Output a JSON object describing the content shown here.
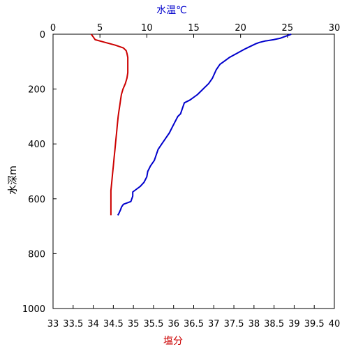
{
  "chart_data": {
    "type": "line",
    "title": "",
    "colors": {
      "temperature": "#0000cc",
      "salinity": "#cc0000",
      "axis": "#000000"
    },
    "axes": {
      "y": {
        "label": "水深m",
        "range": [
          0,
          1000
        ],
        "inverted": true,
        "ticks": [
          "0",
          "200",
          "400",
          "600",
          "800",
          "1000"
        ]
      },
      "x_top": {
        "label": "水温℃",
        "range": [
          0,
          30
        ],
        "ticks": [
          "0",
          "5",
          "10",
          "15",
          "20",
          "25",
          "30"
        ]
      },
      "x_bottom": {
        "label": "塩分",
        "range": [
          33,
          40
        ],
        "ticks": [
          "33",
          "33.5",
          "34",
          "34.5",
          "35",
          "35.5",
          "36",
          "36.5",
          "37",
          "37.5",
          "38",
          "38.5",
          "39",
          "39.5",
          "40"
        ]
      }
    },
    "grid": false,
    "series": [
      {
        "name": "",
        "axis": "x_top",
        "points": [
          [
            25.4,
            0
          ],
          [
            25.0,
            5
          ],
          [
            24.6,
            10
          ],
          [
            24.2,
            15
          ],
          [
            23.5,
            20
          ],
          [
            22.6,
            25
          ],
          [
            22.0,
            30
          ],
          [
            21.6,
            35
          ],
          [
            21.0,
            45
          ],
          [
            20.4,
            55
          ],
          [
            19.6,
            70
          ],
          [
            18.8,
            85
          ],
          [
            18.2,
            100
          ],
          [
            17.8,
            110
          ],
          [
            17.4,
            130
          ],
          [
            17.0,
            160
          ],
          [
            16.6,
            180
          ],
          [
            16.0,
            200
          ],
          [
            15.4,
            220
          ],
          [
            14.6,
            240
          ],
          [
            14.0,
            250
          ],
          [
            13.8,
            270
          ],
          [
            13.6,
            290
          ],
          [
            13.3,
            300
          ],
          [
            13.0,
            320
          ],
          [
            12.7,
            340
          ],
          [
            12.4,
            360
          ],
          [
            12.0,
            380
          ],
          [
            11.6,
            400
          ],
          [
            11.2,
            420
          ],
          [
            11.0,
            440
          ],
          [
            10.8,
            460
          ],
          [
            10.4,
            480
          ],
          [
            10.1,
            500
          ],
          [
            10.0,
            520
          ],
          [
            9.7,
            540
          ],
          [
            9.3,
            555
          ],
          [
            8.9,
            565
          ],
          [
            8.5,
            575
          ],
          [
            8.5,
            590
          ],
          [
            8.3,
            610
          ],
          [
            7.5,
            620
          ],
          [
            7.3,
            630
          ],
          [
            7.2,
            640
          ],
          [
            7.0,
            655
          ],
          [
            6.9,
            660
          ]
        ]
      },
      {
        "name": "",
        "axis": "x_bottom",
        "points": [
          [
            33.95,
            0
          ],
          [
            34.0,
            10
          ],
          [
            34.05,
            20
          ],
          [
            34.3,
            30
          ],
          [
            34.55,
            40
          ],
          [
            34.75,
            50
          ],
          [
            34.82,
            60
          ],
          [
            34.84,
            70
          ],
          [
            34.86,
            85
          ],
          [
            34.86,
            100
          ],
          [
            34.86,
            120
          ],
          [
            34.86,
            140
          ],
          [
            34.84,
            160
          ],
          [
            34.8,
            180
          ],
          [
            34.74,
            200
          ],
          [
            34.7,
            220
          ],
          [
            34.68,
            240
          ],
          [
            34.66,
            260
          ],
          [
            34.64,
            280
          ],
          [
            34.62,
            300
          ],
          [
            34.6,
            330
          ],
          [
            34.58,
            360
          ],
          [
            34.56,
            390
          ],
          [
            34.54,
            420
          ],
          [
            34.52,
            450
          ],
          [
            34.5,
            480
          ],
          [
            34.48,
            510
          ],
          [
            34.46,
            540
          ],
          [
            34.44,
            570
          ],
          [
            34.44,
            600
          ],
          [
            34.44,
            630
          ],
          [
            34.44,
            660
          ]
        ]
      }
    ]
  }
}
